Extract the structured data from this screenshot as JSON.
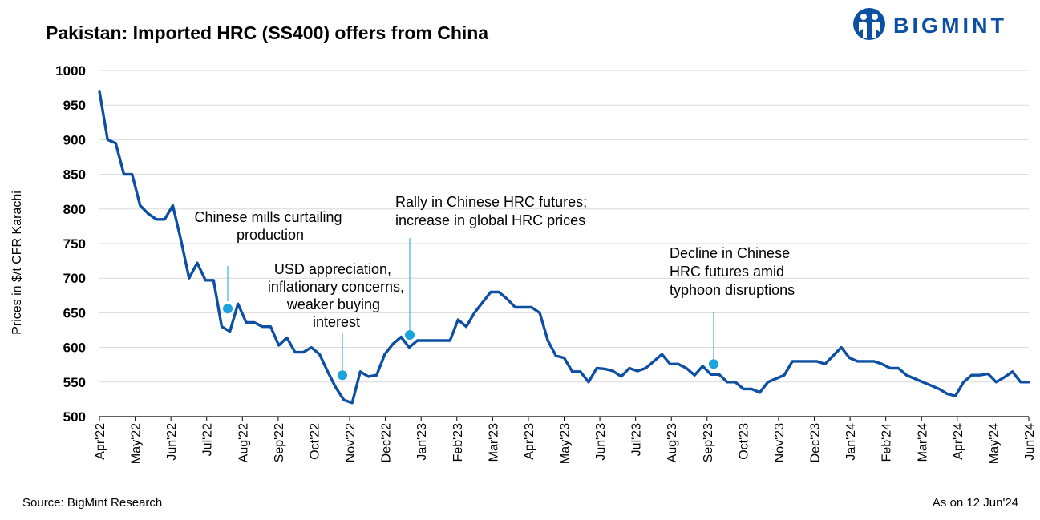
{
  "header": {
    "title": "Pakistan: Imported HRC (SS400) offers from China",
    "brand": "BIGMINT"
  },
  "footer": {
    "source": "Source: BigMint Research",
    "as_on": "As on 12 Jun'24"
  },
  "colors": {
    "line": "#0d4fa3",
    "marker": "#1aa3de",
    "grid": "#d9d9d9",
    "brand": "#0d4fa3"
  },
  "chart_data": {
    "type": "line",
    "title": "Pakistan: Imported HRC (SS400) offers from China",
    "ylabel": "Prices in $/t CFR Karachi",
    "xlabel": "",
    "ylim": [
      500,
      1000
    ],
    "yticks": [
      500,
      550,
      600,
      650,
      700,
      750,
      800,
      850,
      900,
      950,
      1000
    ],
    "x_tick_labels": [
      "Apr'22",
      "May'22",
      "Jun'22",
      "Jul'22",
      "Aug'22",
      "Sep'22",
      "Oct'22",
      "Nov'22",
      "Dec'22",
      "Jan'23",
      "Feb'23",
      "Mar'23",
      "Apr'23",
      "May'23",
      "Jun'23",
      "Jul'23",
      "Aug'23",
      "Sep'23",
      "Oct'23",
      "Nov'23",
      "Dec'23",
      "Jan'24",
      "Feb'24",
      "Mar'24",
      "Apr'24",
      "May'24",
      "Jun'24"
    ],
    "grid": "horizontal",
    "series": [
      {
        "values": [
          970,
          900,
          895,
          850,
          850,
          805,
          793,
          785,
          785,
          805,
          755,
          700,
          722,
          697,
          697,
          630,
          623,
          663,
          636,
          636,
          630,
          630,
          603,
          614,
          593,
          593,
          600,
          590,
          565,
          542,
          524,
          520,
          565,
          558,
          560,
          590,
          605,
          615,
          600,
          610,
          610,
          610,
          610,
          610,
          640,
          630,
          650,
          665,
          680,
          680,
          670,
          658,
          658,
          658,
          650,
          610,
          588,
          585,
          565,
          565,
          550,
          570,
          569,
          566,
          558,
          570,
          566,
          570,
          580,
          590,
          576,
          576,
          570,
          560,
          573,
          561,
          561,
          550,
          550,
          540,
          540,
          535,
          550,
          555,
          560,
          580,
          580,
          580,
          580,
          576,
          588,
          600,
          585,
          580,
          580,
          580,
          576,
          570,
          570,
          560,
          555,
          550,
          545,
          540,
          533,
          530,
          550,
          560,
          560,
          562,
          550,
          557,
          565,
          550,
          550
        ]
      }
    ],
    "annotations": [
      {
        "text_lines": [
          "Chinese mills curtailing",
          "production"
        ],
        "marker_value": 656
      },
      {
        "text_lines": [
          "USD appreciation,",
          "inflationary concerns,",
          "weaker buying",
          "interest"
        ],
        "marker_value": 560
      },
      {
        "text_lines": [
          "Rally in Chinese HRC futures;",
          "increase in global HRC prices"
        ],
        "marker_value": 618
      },
      {
        "text_lines": [
          "Decline in Chinese",
          "HRC futures amid",
          "typhoon disruptions"
        ],
        "marker_value": 576
      }
    ]
  }
}
